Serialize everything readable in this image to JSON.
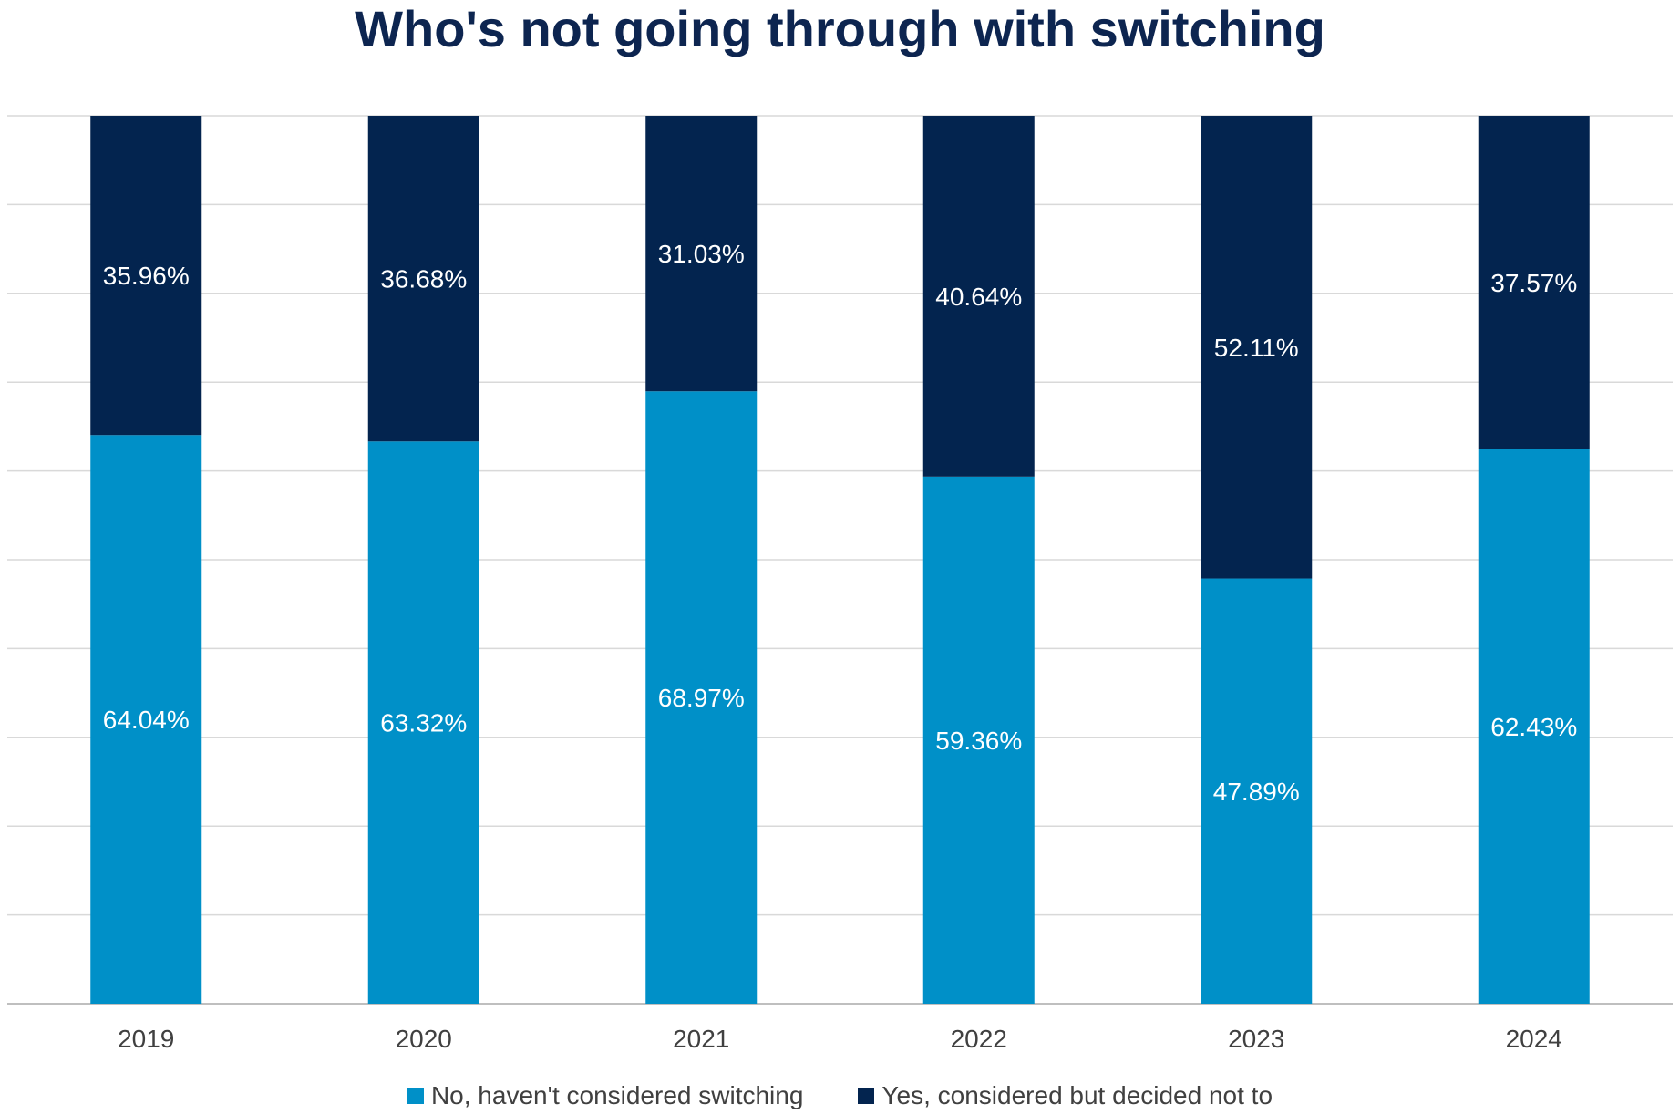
{
  "chart_data": {
    "type": "bar",
    "stacked": true,
    "title": "Who's not going through with switching",
    "xlabel": "",
    "ylabel": "",
    "ylim": [
      0,
      100
    ],
    "grid": true,
    "legend_position": "bottom",
    "categories": [
      "2019",
      "2020",
      "2021",
      "2022",
      "2023",
      "2024"
    ],
    "series": [
      {
        "name": "No, haven't considered switching",
        "color": "#0090c8",
        "values": [
          64.04,
          63.32,
          68.97,
          59.36,
          47.89,
          62.43
        ],
        "labels": [
          "64.04%",
          "63.32%",
          "68.97%",
          "59.36%",
          "47.89%",
          "62.43%"
        ]
      },
      {
        "name": "Yes, considered but decided not to",
        "color": "#03244f",
        "values": [
          35.96,
          36.68,
          31.03,
          40.64,
          52.11,
          37.57
        ],
        "labels": [
          "35.96%",
          "36.68%",
          "31.03%",
          "40.64%",
          "52.11%",
          "37.57%"
        ]
      }
    ]
  }
}
